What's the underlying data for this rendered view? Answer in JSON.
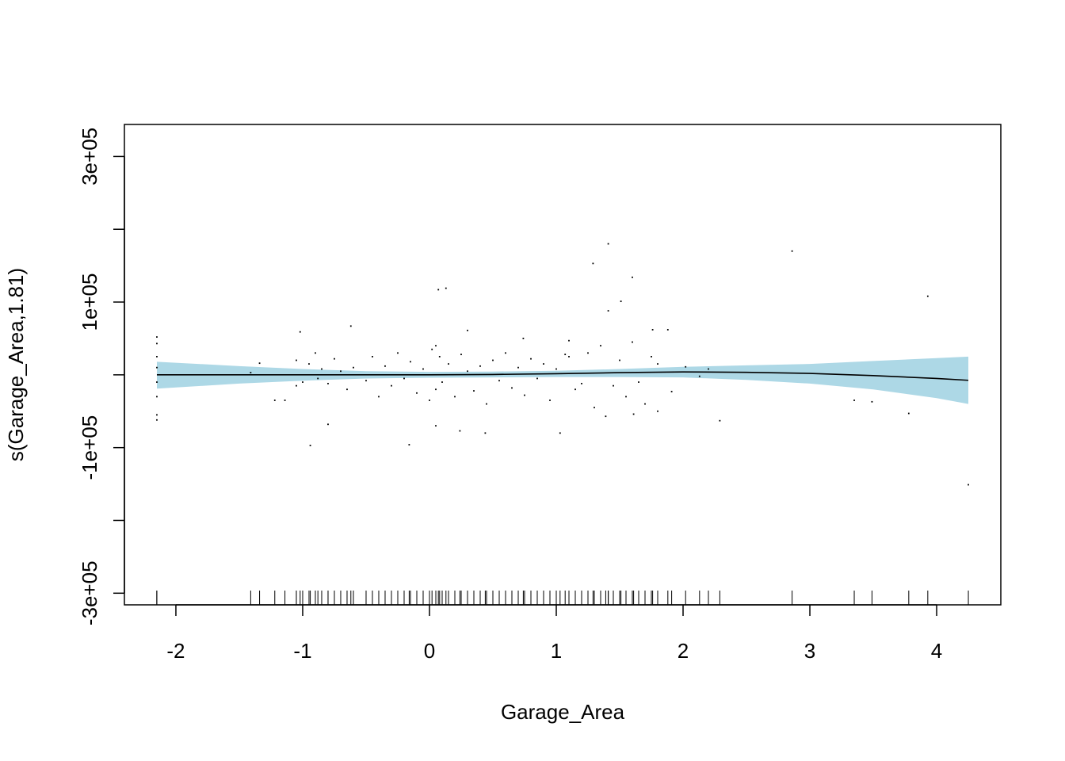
{
  "chart_data": {
    "type": "gam_smooth",
    "x_label": "Garage_Area",
    "y_label": "s(Garage_Area,1.81)",
    "xlim": [
      -2.406,
      4.506
    ],
    "ylim": [
      -316000,
      344000
    ],
    "xticks": [
      -2,
      -1,
      0,
      1,
      2,
      3,
      4
    ],
    "yticks": [
      {
        "value": -300000,
        "label": "-3e+05"
      },
      {
        "value": -100000,
        "label": "-1e+05"
      },
      {
        "value": 100000,
        "label": "1e+05"
      },
      {
        "value": 300000,
        "label": "3e+05"
      }
    ],
    "yticks_unlabeled": [
      -200000,
      0,
      200000
    ],
    "band_color": "#add8e6",
    "line_color": "#000000",
    "point_color": "#000000",
    "smooth": {
      "x": [
        -2.15,
        -1.5,
        -1,
        -0.5,
        0,
        0.5,
        1,
        1.5,
        2,
        2.5,
        3,
        3.5,
        4,
        4.25
      ],
      "fit": [
        0,
        0,
        0,
        0,
        0,
        500,
        1500,
        3000,
        4000,
        3500,
        2000,
        -1000,
        -5000,
        -7500
      ],
      "upper": [
        18000,
        12000,
        8000,
        5000,
        4000,
        4500,
        5500,
        8000,
        11000,
        13000,
        15000,
        19000,
        23000,
        25000
      ],
      "lower": [
        -19000,
        -12000,
        -8000,
        -5000,
        -4000,
        -3500,
        -3000,
        -3000,
        -3500,
        -7000,
        -12000,
        -20000,
        -32000,
        -40000
      ]
    },
    "points": {
      "x": [
        1.41,
        2.86,
        3.93,
        1.29,
        1.6,
        0.07,
        0.13,
        4.25,
        -0.94,
        -0.16,
        1.03,
        2.29,
        3.35,
        3.49,
        3.78,
        -0.62,
        -2.15,
        -2.15,
        -2.15,
        -2.15,
        -2.15,
        -2.15,
        -2.15,
        -2.15,
        1.51,
        1.41,
        1.76,
        1.88,
        -1.02,
        0.3,
        0.74,
        1.1,
        1.07,
        -0.8,
        0.44,
        0.24,
        0.05,
        1.39,
        1.61,
        1.8,
        1.91,
        2.02,
        2.13,
        2.2,
        -1.34,
        -1.22,
        -1.14,
        -1.41,
        -1.05,
        -1.0,
        -0.95,
        -0.9,
        -0.88,
        -0.85,
        -0.8,
        -0.75,
        -0.7,
        -0.65,
        -0.6,
        -0.5,
        -0.45,
        -0.4,
        -0.35,
        -0.3,
        -0.25,
        -0.2,
        -0.15,
        -0.1,
        -0.05,
        0,
        0.02,
        0.05,
        0.08,
        0.1,
        0.15,
        0.2,
        0.25,
        0.3,
        0.35,
        0.4,
        0.45,
        0.5,
        0.55,
        0.6,
        0.65,
        0.7,
        0.75,
        0.8,
        0.85,
        0.9,
        0.95,
        1.0,
        1.1,
        1.15,
        1.2,
        1.25,
        1.3,
        1.35,
        1.45,
        1.5,
        1.55,
        1.6,
        1.65,
        1.7,
        1.75,
        1.8,
        -1.05,
        0.05
      ],
      "y": [
        180000,
        170000,
        108000,
        153000,
        134000,
        117000,
        119000,
        -151000,
        -97000,
        -96000,
        -80000,
        -63000,
        -35000,
        -37000,
        -53000,
        67000,
        52000,
        43000,
        25000,
        10000,
        -10000,
        -30000,
        -55000,
        -62000,
        101000,
        88000,
        62000,
        62000,
        59000,
        61000,
        50000,
        47000,
        28000,
        -68000,
        -80000,
        -77000,
        -70000,
        -57000,
        -54000,
        -50000,
        -23000,
        11000,
        -2000,
        8000,
        16000,
        -35000,
        -35000,
        3000,
        20000,
        -10000,
        15000,
        30000,
        -5000,
        8000,
        -12000,
        22000,
        5000,
        -20000,
        10000,
        -8000,
        25000,
        -30000,
        12000,
        -15000,
        30000,
        -5000,
        18000,
        -25000,
        8000,
        -35000,
        35000,
        -20000,
        25000,
        -10000,
        15000,
        -30000,
        28000,
        5000,
        -22000,
        12000,
        -40000,
        20000,
        -8000,
        30000,
        -18000,
        10000,
        -28000,
        22000,
        -5000,
        15000,
        -35000,
        8000,
        25000,
        -20000,
        -12000,
        30000,
        -45000,
        40000,
        -15000,
        20000,
        -30000,
        45000,
        -10000,
        -40000,
        25000,
        15000,
        -15000,
        40000
      ]
    }
  }
}
